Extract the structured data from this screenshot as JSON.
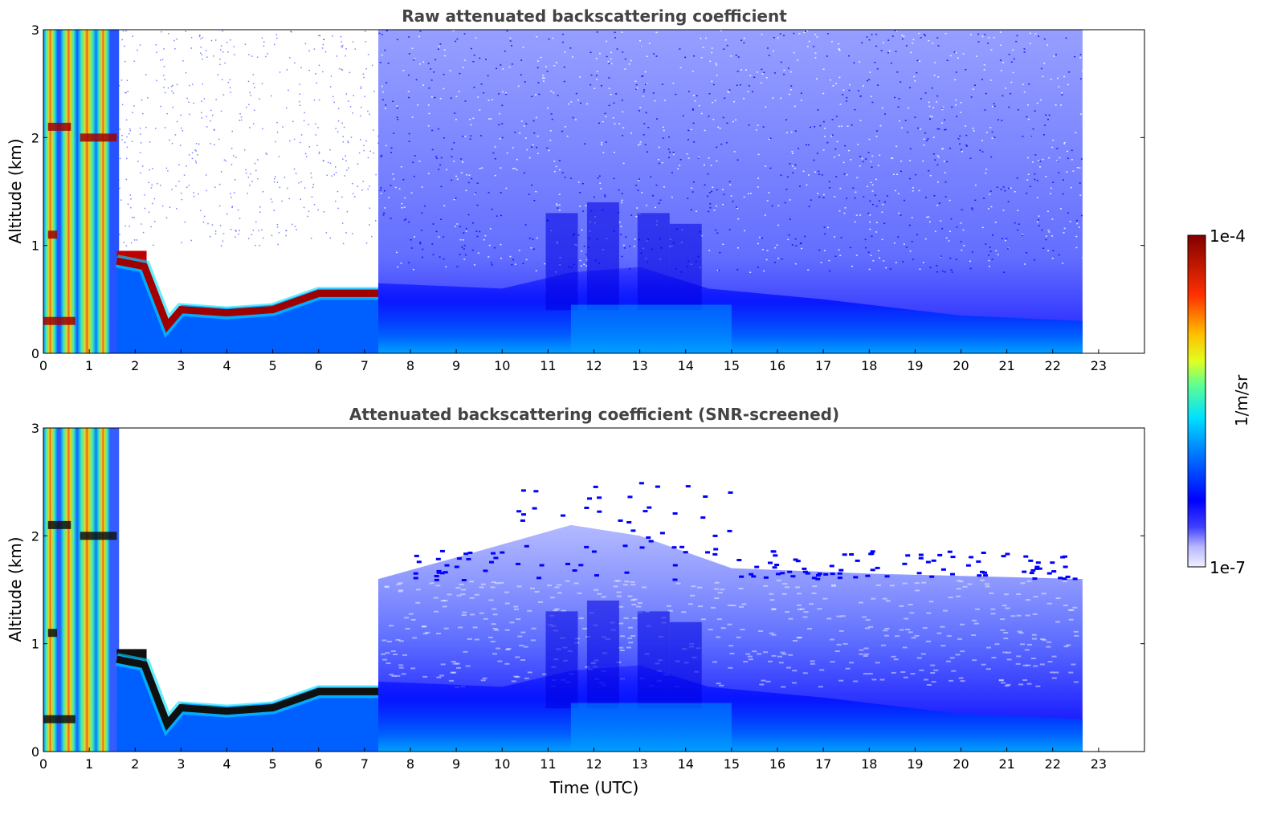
{
  "chart_data": [
    {
      "type": "heatmap",
      "title": "Raw attenuated backscattering coefficient",
      "ylabel": "Altitude (km)",
      "xlabel": "",
      "xlim": [
        0,
        24
      ],
      "ylim": [
        0,
        3
      ],
      "x_ticks": [
        "0",
        "1",
        "2",
        "3",
        "4",
        "5",
        "6",
        "7",
        "8",
        "9",
        "10",
        "11",
        "12",
        "13",
        "14",
        "15",
        "16",
        "17",
        "18",
        "19",
        "20",
        "21",
        "22",
        "23"
      ],
      "y_ticks": [
        "0",
        "1",
        "2",
        "3"
      ],
      "data_end_time": 22.65,
      "colorscale": "jet (log scale)",
      "layer_top_km": [
        {
          "x": 1.6,
          "y": 0.9
        },
        {
          "x": 2.2,
          "y": 0.85
        },
        {
          "x": 2.7,
          "y": 0.3
        },
        {
          "x": 3.0,
          "y": 0.45
        },
        {
          "x": 4.0,
          "y": 0.42
        },
        {
          "x": 5.0,
          "y": 0.45
        },
        {
          "x": 6.0,
          "y": 0.6
        },
        {
          "x": 7.0,
          "y": 0.6
        },
        {
          "x": 7.3,
          "y": 0.6
        }
      ],
      "boundary_layer_top_km": [
        {
          "x": 7.3,
          "y": 0.65
        },
        {
          "x": 10.0,
          "y": 0.6
        },
        {
          "x": 11.5,
          "y": 0.75
        },
        {
          "x": 13.0,
          "y": 0.8
        },
        {
          "x": 14.5,
          "y": 0.6
        },
        {
          "x": 17.0,
          "y": 0.5
        },
        {
          "x": 20.0,
          "y": 0.35
        },
        {
          "x": 22.65,
          "y": 0.3
        }
      ]
    },
    {
      "type": "heatmap",
      "title": "Attenuated backscattering coefficient (SNR-screened)",
      "ylabel": "Altitude (km)",
      "xlabel": "Time (UTC)",
      "xlim": [
        0,
        24
      ],
      "ylim": [
        0,
        3
      ],
      "x_ticks": [
        "0",
        "1",
        "2",
        "3",
        "4",
        "5",
        "6",
        "7",
        "8",
        "9",
        "10",
        "11",
        "12",
        "13",
        "14",
        "15",
        "16",
        "17",
        "18",
        "19",
        "20",
        "21",
        "22",
        "23"
      ],
      "y_ticks": [
        "0",
        "1",
        "2",
        "3"
      ],
      "data_end_time": 22.65,
      "colorscale": "jet (log scale)",
      "screened_top_km": [
        {
          "x": 7.3,
          "y": 1.6
        },
        {
          "x": 9.0,
          "y": 1.8
        },
        {
          "x": 11.5,
          "y": 2.1
        },
        {
          "x": 13.0,
          "y": 2.0
        },
        {
          "x": 15.0,
          "y": 1.7
        },
        {
          "x": 18.0,
          "y": 1.65
        },
        {
          "x": 22.65,
          "y": 1.6
        }
      ]
    }
  ],
  "colorbar": {
    "label": "1/m/sr",
    "max_label": "1e-4",
    "min_label": "1e-7",
    "colors": [
      "#f0f0ff",
      "#c8c8ff",
      "#9090ff",
      "#0000ff",
      "#0060ff",
      "#00c0ff",
      "#30e0d0",
      "#80ff80",
      "#e0ff20",
      "#ffd000",
      "#ff8000",
      "#ff2000",
      "#c00000",
      "#800000"
    ]
  }
}
